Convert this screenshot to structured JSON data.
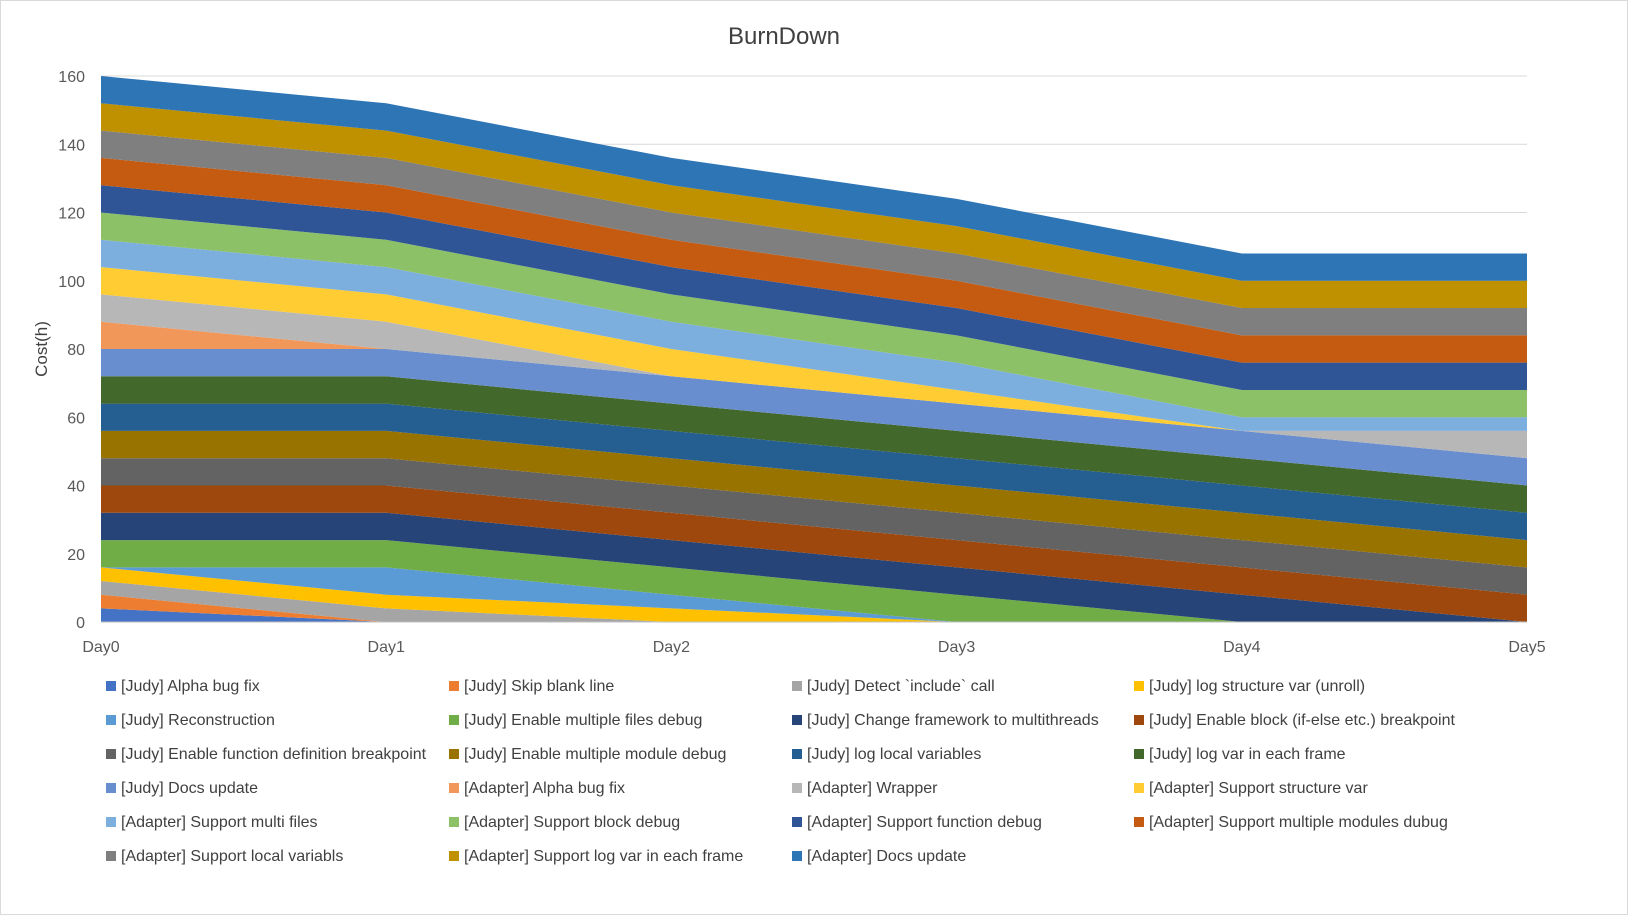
{
  "chart_data": {
    "type": "area",
    "stacked": true,
    "title": "BurnDown",
    "xlabel": "",
    "ylabel": "Cost(h)",
    "ylim": [
      0,
      160
    ],
    "yticks": [
      0,
      20,
      40,
      60,
      80,
      100,
      120,
      140,
      160
    ],
    "grid": true,
    "legend_position": "bottom",
    "categories": [
      "Day0",
      "Day1",
      "Day2",
      "Day3",
      "Day4",
      "Day5"
    ],
    "series": [
      {
        "name": "[Judy] Alpha bug fix",
        "color": "#4472C4",
        "values": [
          4,
          0,
          0,
          0,
          0,
          0
        ]
      },
      {
        "name": "[Judy] Skip blank line",
        "color": "#ED7D31",
        "values": [
          4,
          0,
          0,
          0,
          0,
          0
        ]
      },
      {
        "name": "[Judy] Detect `include` call",
        "color": "#A5A5A5",
        "values": [
          4,
          4,
          0,
          0,
          0,
          0
        ]
      },
      {
        "name": "[Judy] log structure var (unroll)",
        "color": "#FFC000",
        "values": [
          4,
          4,
          4,
          0,
          0,
          0
        ]
      },
      {
        "name": "[Judy] Reconstruction",
        "color": "#5B9BD5",
        "values": [
          0,
          8,
          4,
          0,
          0,
          0
        ]
      },
      {
        "name": "[Judy] Enable multiple files debug",
        "color": "#70AD47",
        "values": [
          8,
          8,
          8,
          8,
          0,
          0
        ]
      },
      {
        "name": "[Judy] Change framework to multithreads",
        "color": "#264478",
        "values": [
          8,
          8,
          8,
          8,
          8,
          0
        ]
      },
      {
        "name": "[Judy] Enable block (if-else etc.) breakpoint",
        "color": "#9E480E",
        "values": [
          8,
          8,
          8,
          8,
          8,
          8
        ]
      },
      {
        "name": "[Judy] Enable function definition breakpoint",
        "color": "#636363",
        "values": [
          8,
          8,
          8,
          8,
          8,
          8
        ]
      },
      {
        "name": "[Judy] Enable multiple module debug",
        "color": "#997300",
        "values": [
          8,
          8,
          8,
          8,
          8,
          8
        ]
      },
      {
        "name": "[Judy] log local variables",
        "color": "#255E91",
        "values": [
          8,
          8,
          8,
          8,
          8,
          8
        ]
      },
      {
        "name": "[Judy] log var in each frame",
        "color": "#43682B",
        "values": [
          8,
          8,
          8,
          8,
          8,
          8
        ]
      },
      {
        "name": "[Judy] Docs update",
        "color": "#698ED0",
        "values": [
          8,
          8,
          8,
          8,
          8,
          8
        ]
      },
      {
        "name": "[Adapter] Alpha bug fix",
        "color": "#F1975A",
        "values": [
          8,
          0,
          0,
          0,
          0,
          0
        ]
      },
      {
        "name": "[Adapter] Wrapper",
        "color": "#B7B7B7",
        "values": [
          8,
          8,
          0,
          0,
          0,
          8
        ]
      },
      {
        "name": "[Adapter] Support structure var",
        "color": "#FFCD33",
        "values": [
          8,
          8,
          8,
          4,
          0,
          0
        ]
      },
      {
        "name": "[Adapter] Support multi files",
        "color": "#7CAFDD",
        "values": [
          8,
          8,
          8,
          8,
          4,
          4
        ]
      },
      {
        "name": "[Adapter] Support block debug",
        "color": "#8CC168",
        "values": [
          8,
          8,
          8,
          8,
          8,
          8
        ]
      },
      {
        "name": "[Adapter] Support function debug",
        "color": "#2F5597",
        "values": [
          8,
          8,
          8,
          8,
          8,
          8
        ]
      },
      {
        "name": "[Adapter] Support multiple modules dubug",
        "color": "#C55A11",
        "values": [
          8,
          8,
          8,
          8,
          8,
          8
        ]
      },
      {
        "name": "[Adapter] Support local variabls",
        "color": "#7F7F7F",
        "values": [
          8,
          8,
          8,
          8,
          8,
          8
        ]
      },
      {
        "name": "[Adapter] Support log var in each frame",
        "color": "#BF9000",
        "values": [
          8,
          8,
          8,
          8,
          8,
          8
        ]
      },
      {
        "name": "[Adapter] Docs update",
        "color": "#2E75B6",
        "values": [
          8,
          8,
          8,
          8,
          8,
          8
        ]
      }
    ]
  }
}
